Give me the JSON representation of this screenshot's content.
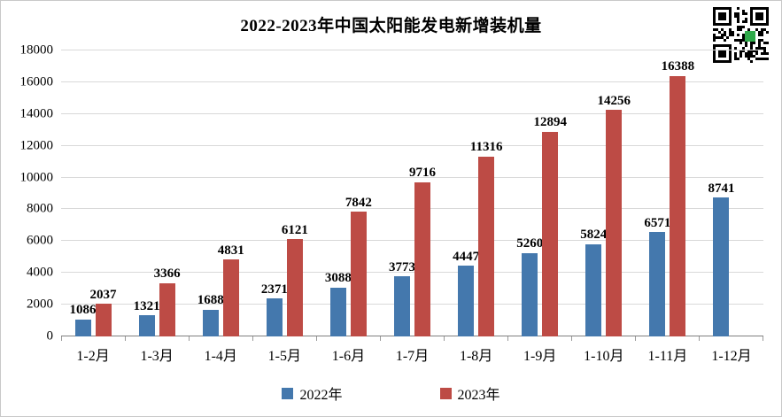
{
  "chart_data": {
    "type": "bar",
    "title": "2022-2023年中国太阳能发电新增装机量",
    "categories": [
      "1-2月",
      "1-3月",
      "1-4月",
      "1-5月",
      "1-6月",
      "1-7月",
      "1-8月",
      "1-9月",
      "1-10月",
      "1-11月",
      "1-12月"
    ],
    "series": [
      {
        "name": "2022年",
        "color": "#4478ad",
        "values": [
          1086,
          1321,
          1688,
          2371,
          3088,
          3773,
          4447,
          5260,
          5824,
          6571,
          8741
        ]
      },
      {
        "name": "2023年",
        "color": "#bd4b45",
        "values": [
          2037,
          3366,
          4831,
          6121,
          7842,
          9716,
          11316,
          12894,
          14256,
          16388,
          null
        ]
      }
    ],
    "xlabel": "",
    "ylabel": "",
    "ylim": [
      0,
      18000
    ],
    "ytick_step": 2000,
    "grid": true,
    "legend_position": "bottom",
    "colors": {
      "gridline": "#d9d9d9",
      "axis_line": "#7f7f7f",
      "qr_logo_green": "#2faa4a"
    }
  },
  "icons": {
    "qr_code": "qr-code"
  }
}
